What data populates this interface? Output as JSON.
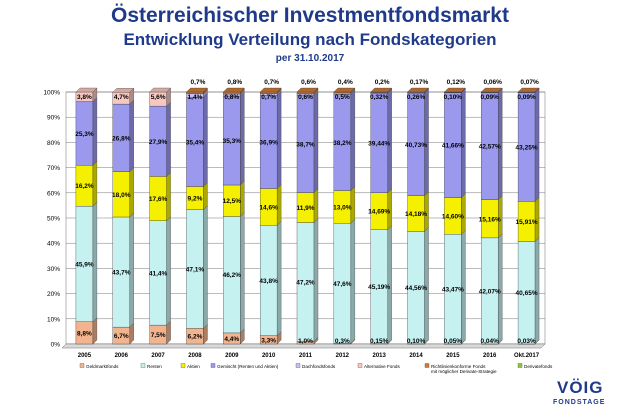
{
  "header": {
    "title": "Österreichischer Investmentfondsmarkt",
    "subtitle": "Entwicklung Verteilung nach Fondskategorien",
    "date": "per 31.10.2017"
  },
  "logo": {
    "main": "VÖIG",
    "sub": "FONDSTAGE"
  },
  "chart_data": {
    "type": "bar",
    "stacked": true,
    "percent": true,
    "ylim": [
      0,
      100
    ],
    "yticks": [
      "0%",
      "10%",
      "20%",
      "30%",
      "40%",
      "50%",
      "60%",
      "70%",
      "80%",
      "90%",
      "100%"
    ],
    "categories": [
      "2005",
      "2006",
      "2007",
      "2008",
      "2009",
      "2010",
      "2011",
      "2012",
      "2013",
      "2014",
      "2015",
      "2016",
      "Okt.2017"
    ],
    "legend_position": "bottom",
    "series": [
      {
        "name": "Geldmarktfonds",
        "color": "#f2b48f",
        "values": [
          8.8,
          6.7,
          7.5,
          6.2,
          4.4,
          3.3,
          1.0,
          0.3,
          0.15,
          0.1,
          0.05,
          0.04,
          0.03
        ],
        "labels": [
          "8,8%",
          "6,7%",
          "7,5%",
          "6,2%",
          "4,4%",
          "3,3%",
          "1,0%",
          "0,3%",
          "0,15%",
          "0,10%",
          "0,05%",
          "0,04%",
          "0,03%"
        ]
      },
      {
        "name": "Renten",
        "color": "#c6f1f1",
        "values": [
          45.9,
          43.7,
          41.4,
          47.1,
          46.2,
          43.8,
          47.2,
          47.6,
          45.19,
          44.56,
          43.47,
          42.07,
          40.65
        ],
        "labels": [
          "45,9%",
          "43,7%",
          "41,4%",
          "47,1%",
          "46,2%",
          "43,8%",
          "47,2%",
          "47,6%",
          "45,19%",
          "44,56%",
          "43,47%",
          "42,07%",
          "40,65%"
        ]
      },
      {
        "name": "Aktien",
        "color": "#f4f000",
        "values": [
          16.2,
          18.0,
          17.6,
          9.2,
          12.5,
          14.6,
          11.9,
          13.0,
          14.69,
          14.18,
          14.6,
          15.16,
          15.91
        ],
        "labels": [
          "16,2%",
          "18,0%",
          "17,6%",
          "9,2%",
          "12,5%",
          "14,6%",
          "11,9%",
          "13,0%",
          "14,69%",
          "14,18%",
          "14,60%",
          "15,16%",
          "15,91%"
        ]
      },
      {
        "name": "Gemischt (Renten und Aktien)",
        "color": "#9a99ee",
        "values": [
          25.3,
          26.8,
          27.9,
          35.4,
          35.3,
          36.9,
          38.7,
          38.2,
          39.44,
          40.73,
          41.66,
          42.57,
          43.25
        ],
        "labels": [
          "25,3%",
          "26,8%",
          "27,9%",
          "35,4%",
          "35,3%",
          "36,9%",
          "38,7%",
          "38,2%",
          "39,44%",
          "40,73%",
          "41,66%",
          "42,57%",
          "43,25%"
        ]
      },
      {
        "name": "Dachfondsfonds",
        "color": "#c8c0ee",
        "values": [
          0,
          0,
          0,
          1.4,
          0.8,
          0.7,
          0.6,
          0.5,
          0.32,
          0.26,
          0.1,
          0.09,
          0.09
        ],
        "labels": [
          "",
          "",
          "",
          "1,4%",
          "0,8%",
          "0,7%",
          "0,6%",
          "0,5%",
          "0,32%",
          "0,26%",
          "0,10%",
          "0,09%",
          "0,09%"
        ]
      },
      {
        "name": "Alternative Fonds",
        "color": "#f8c7c0",
        "values": [
          3.8,
          4.7,
          5.6,
          0,
          0,
          0,
          0,
          0,
          0,
          0,
          0,
          0,
          0
        ],
        "labels": [
          "3,8%",
          "4,7%",
          "5,6%",
          "",
          "",
          "",
          "",
          "",
          "",
          "",
          "",
          "",
          ""
        ]
      },
      {
        "name": "Richtlinienkonforme Fonds mit möglicher Derivate-Strategie",
        "color": "#cf7a3a",
        "values": [
          0,
          0,
          0,
          0.7,
          0.8,
          0.7,
          0.6,
          0.4,
          0.2,
          0.17,
          0.12,
          0.06,
          0.07
        ],
        "labels": [
          "",
          "",
          "",
          "0,7%",
          "0,8%",
          "0,7%",
          "0,6%",
          "0,4%",
          "0,2%",
          "0,17%",
          "0,12%",
          "0,06%",
          "0,07%"
        ]
      },
      {
        "name": "Derivatefonds",
        "color": "#8dc63f",
        "values": [
          0,
          0,
          0,
          0,
          0,
          0,
          0,
          0,
          0,
          0,
          0,
          0,
          0
        ],
        "labels": [
          "",
          "",
          "",
          "",
          "",
          "",
          "",
          "",
          "",
          "",
          "",
          "",
          ""
        ]
      }
    ]
  }
}
